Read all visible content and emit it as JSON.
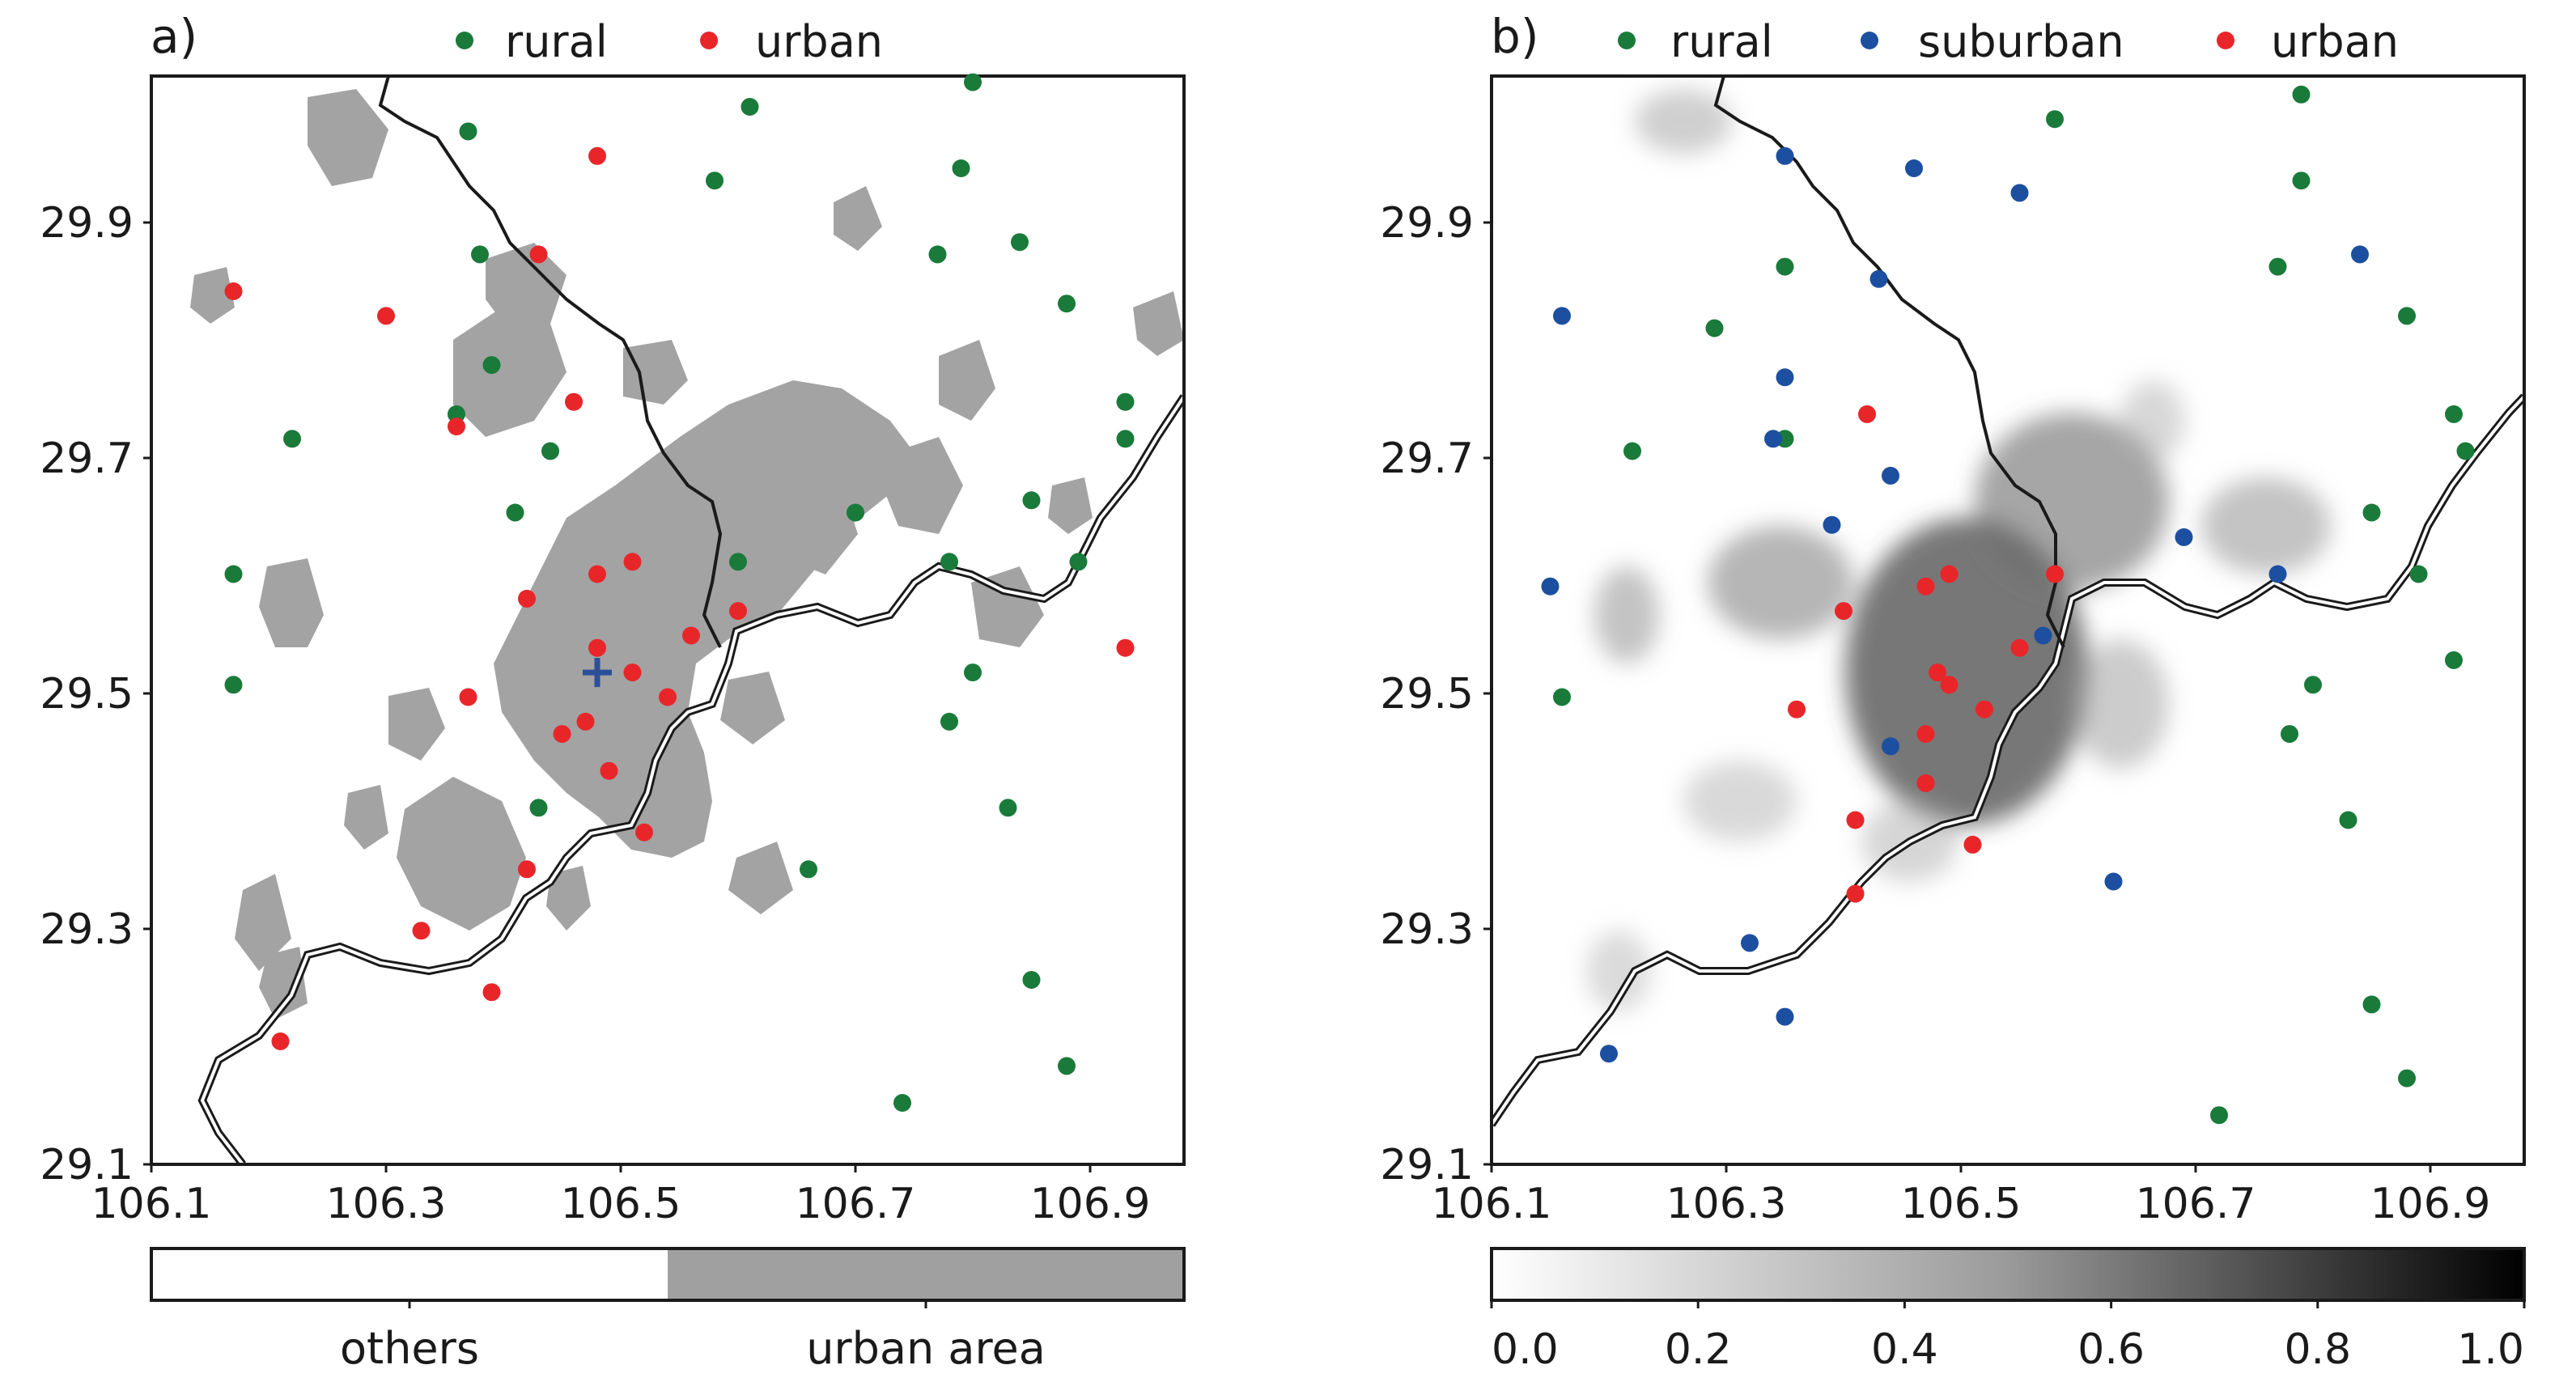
{
  "chart_data": [
    {
      "type": "scatter",
      "panel_label": "a)",
      "background": "urban land cover map (gray = urban area, white = others)",
      "xlim": [
        106.1,
        106.98
      ],
      "ylim": [
        29.1,
        29.985
      ],
      "xticks": [
        106.1,
        106.3,
        106.5,
        106.7,
        106.9
      ],
      "xtick_labels": [
        "106.1",
        "106.3",
        "106.5",
        "106.7",
        "106.9"
      ],
      "yticks": [
        29.1,
        29.3,
        29.5,
        29.7,
        29.9
      ],
      "ytick_labels": [
        "29.1",
        "29.3",
        "29.5",
        "29.7",
        "29.9"
      ],
      "legend": [
        {
          "name": "rural",
          "color": "#1a7a3a"
        },
        {
          "name": "urban",
          "color": "#e8262a"
        }
      ],
      "center_marker": {
        "lon": 106.48,
        "lat": 29.5,
        "symbol": "+",
        "color": "#2c4f9a"
      },
      "colorbar": {
        "type": "categorical",
        "labels": [
          "others",
          "urban area"
        ],
        "colors": [
          "#ffffff",
          "#a0a0a0"
        ]
      },
      "series": [
        {
          "name": "rural",
          "color": "#1a7a3a",
          "points": [
            [
              106.37,
              29.94
            ],
            [
              106.38,
              29.84
            ],
            [
              106.39,
              29.75
            ],
            [
              106.36,
              29.71
            ],
            [
              106.41,
              29.63
            ],
            [
              106.44,
              29.68
            ],
            [
              106.43,
              29.39
            ],
            [
              106.6,
              29.59
            ],
            [
              106.66,
              29.34
            ],
            [
              106.58,
              29.9
            ],
            [
              106.61,
              29.96
            ],
            [
              106.17,
              29.58
            ],
            [
              106.17,
              29.49
            ],
            [
              106.22,
              29.69
            ],
            [
              106.7,
              29.63
            ],
            [
              106.74,
              29.15
            ],
            [
              106.77,
              29.84
            ],
            [
              106.78,
              29.59
            ],
            [
              106.78,
              29.46
            ],
            [
              106.79,
              29.91
            ],
            [
              106.8,
              29.98
            ],
            [
              106.8,
              29.5
            ],
            [
              106.83,
              29.39
            ],
            [
              106.84,
              29.85
            ],
            [
              106.85,
              29.64
            ],
            [
              106.85,
              29.25
            ],
            [
              106.88,
              29.8
            ],
            [
              106.89,
              29.59
            ],
            [
              106.88,
              29.18
            ],
            [
              106.93,
              29.72
            ],
            [
              106.93,
              29.69
            ]
          ]
        },
        {
          "name": "urban",
          "color": "#e8262a",
          "points": [
            [
              106.17,
              29.81
            ],
            [
              106.3,
              29.79
            ],
            [
              106.36,
              29.7
            ],
            [
              106.43,
              29.84
            ],
            [
              106.46,
              29.72
            ],
            [
              106.48,
              29.92
            ],
            [
              106.42,
              29.56
            ],
            [
              106.48,
              29.58
            ],
            [
              106.51,
              29.59
            ],
            [
              106.48,
              29.52
            ],
            [
              106.51,
              29.5
            ],
            [
              106.47,
              29.46
            ],
            [
              106.45,
              29.45
            ],
            [
              106.49,
              29.42
            ],
            [
              106.54,
              29.48
            ],
            [
              106.56,
              29.53
            ],
            [
              106.6,
              29.55
            ],
            [
              106.37,
              29.48
            ],
            [
              106.52,
              29.37
            ],
            [
              106.42,
              29.34
            ],
            [
              106.33,
              29.29
            ],
            [
              106.39,
              29.24
            ],
            [
              106.21,
              29.2
            ],
            [
              106.93,
              29.52
            ]
          ]
        }
      ]
    },
    {
      "type": "scatter",
      "panel_label": "b)",
      "background": "urban fraction map (grayscale 0.0 to 1.0)",
      "xlim": [
        106.1,
        106.98
      ],
      "ylim": [
        29.1,
        29.985
      ],
      "xticks": [
        106.1,
        106.3,
        106.5,
        106.7,
        106.9
      ],
      "xtick_labels": [
        "106.1",
        "106.3",
        "106.5",
        "106.7",
        "106.9"
      ],
      "yticks": [
        29.1,
        29.3,
        29.5,
        29.7,
        29.9
      ],
      "ytick_labels": [
        "29.1",
        "29.3",
        "29.5",
        "29.7",
        "29.9"
      ],
      "legend": [
        {
          "name": "rural",
          "color": "#1a7a3a"
        },
        {
          "name": "suburban",
          "color": "#1d4fa0"
        },
        {
          "name": "urban",
          "color": "#e8262a"
        }
      ],
      "colorbar": {
        "type": "continuous",
        "range": [
          0.0,
          1.0
        ],
        "ticks": [
          "0.0",
          "0.2",
          "0.4",
          "0.6",
          "0.8",
          "1.0"
        ]
      },
      "series": [
        {
          "name": "rural",
          "color": "#1a7a3a",
          "points": [
            [
              106.29,
              29.78
            ],
            [
              106.35,
              29.83
            ],
            [
              106.35,
              29.69
            ],
            [
              106.22,
              29.68
            ],
            [
              106.16,
              29.48
            ],
            [
              106.58,
              29.95
            ],
            [
              106.79,
              29.97
            ],
            [
              106.79,
              29.9
            ],
            [
              106.77,
              29.83
            ],
            [
              106.88,
              29.79
            ],
            [
              106.92,
              29.71
            ],
            [
              106.93,
              29.68
            ],
            [
              106.85,
              29.63
            ],
            [
              106.89,
              29.58
            ],
            [
              106.92,
              29.51
            ],
            [
              106.8,
              29.49
            ],
            [
              106.78,
              29.45
            ],
            [
              106.83,
              29.38
            ],
            [
              106.85,
              29.23
            ],
            [
              106.88,
              29.17
            ],
            [
              106.72,
              29.14
            ]
          ]
        },
        {
          "name": "suburban",
          "color": "#1d4fa0",
          "points": [
            [
              106.35,
              29.92
            ],
            [
              106.46,
              29.91
            ],
            [
              106.55,
              29.89
            ],
            [
              106.43,
              29.82
            ],
            [
              106.16,
              29.79
            ],
            [
              106.35,
              29.74
            ],
            [
              106.34,
              29.69
            ],
            [
              106.44,
              29.66
            ],
            [
              106.39,
              29.62
            ],
            [
              106.69,
              29.61
            ],
            [
              106.77,
              29.58
            ],
            [
              106.84,
              29.84
            ],
            [
              106.15,
              29.57
            ],
            [
              106.57,
              29.53
            ],
            [
              106.44,
              29.44
            ],
            [
              106.63,
              29.33
            ],
            [
              106.32,
              29.28
            ],
            [
              106.35,
              29.22
            ],
            [
              106.2,
              29.19
            ]
          ]
        },
        {
          "name": "urban",
          "color": "#e8262a",
          "points": [
            [
              106.42,
              29.71
            ],
            [
              106.47,
              29.57
            ],
            [
              106.49,
              29.58
            ],
            [
              106.58,
              29.58
            ],
            [
              106.4,
              29.55
            ],
            [
              106.48,
              29.5
            ],
            [
              106.49,
              29.49
            ],
            [
              106.52,
              29.47
            ],
            [
              106.55,
              29.52
            ],
            [
              106.36,
              29.47
            ],
            [
              106.47,
              29.45
            ],
            [
              106.47,
              29.41
            ],
            [
              106.41,
              29.38
            ],
            [
              106.51,
              29.36
            ],
            [
              106.41,
              29.32
            ]
          ]
        }
      ]
    }
  ]
}
